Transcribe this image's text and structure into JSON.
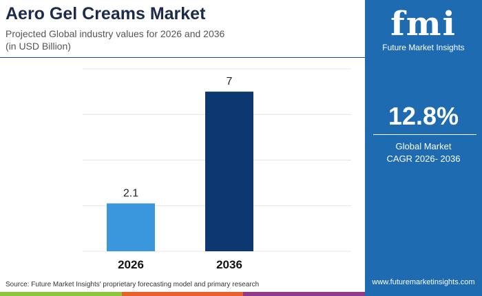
{
  "title": "Aero Gel Creams Market",
  "subtitle_line1": "Projected Global industry values for 2026 and 2036",
  "subtitle_line2": "(in USD Billion)",
  "source": "Source: Future Market Insights' proprietary forecasting model and primary research",
  "panel": {
    "logo": "fmi",
    "logo_text": "Future Market Insights",
    "cagr_value": "12.8%",
    "cagr_label1": "Global Market",
    "cagr_label2": "CAGR 2026- 2036",
    "url": "www.futuremarketinsights.com"
  },
  "colors": {
    "bar_2026": "#3a96dd",
    "bar_2036": "#0d3770",
    "panel": "#1e6bb2",
    "stripe": [
      "#8cc63f",
      "#e8612c",
      "#8e3a8e"
    ]
  },
  "chart_data": {
    "type": "bar",
    "title": "Aero Gel Creams Market",
    "categories": [
      "2026",
      "2036"
    ],
    "values": [
      2.1,
      7
    ],
    "labels": [
      "2.1",
      "7"
    ],
    "ylim": [
      0,
      8
    ],
    "grid": true,
    "xlabel": "",
    "ylabel": "USD Billion"
  }
}
